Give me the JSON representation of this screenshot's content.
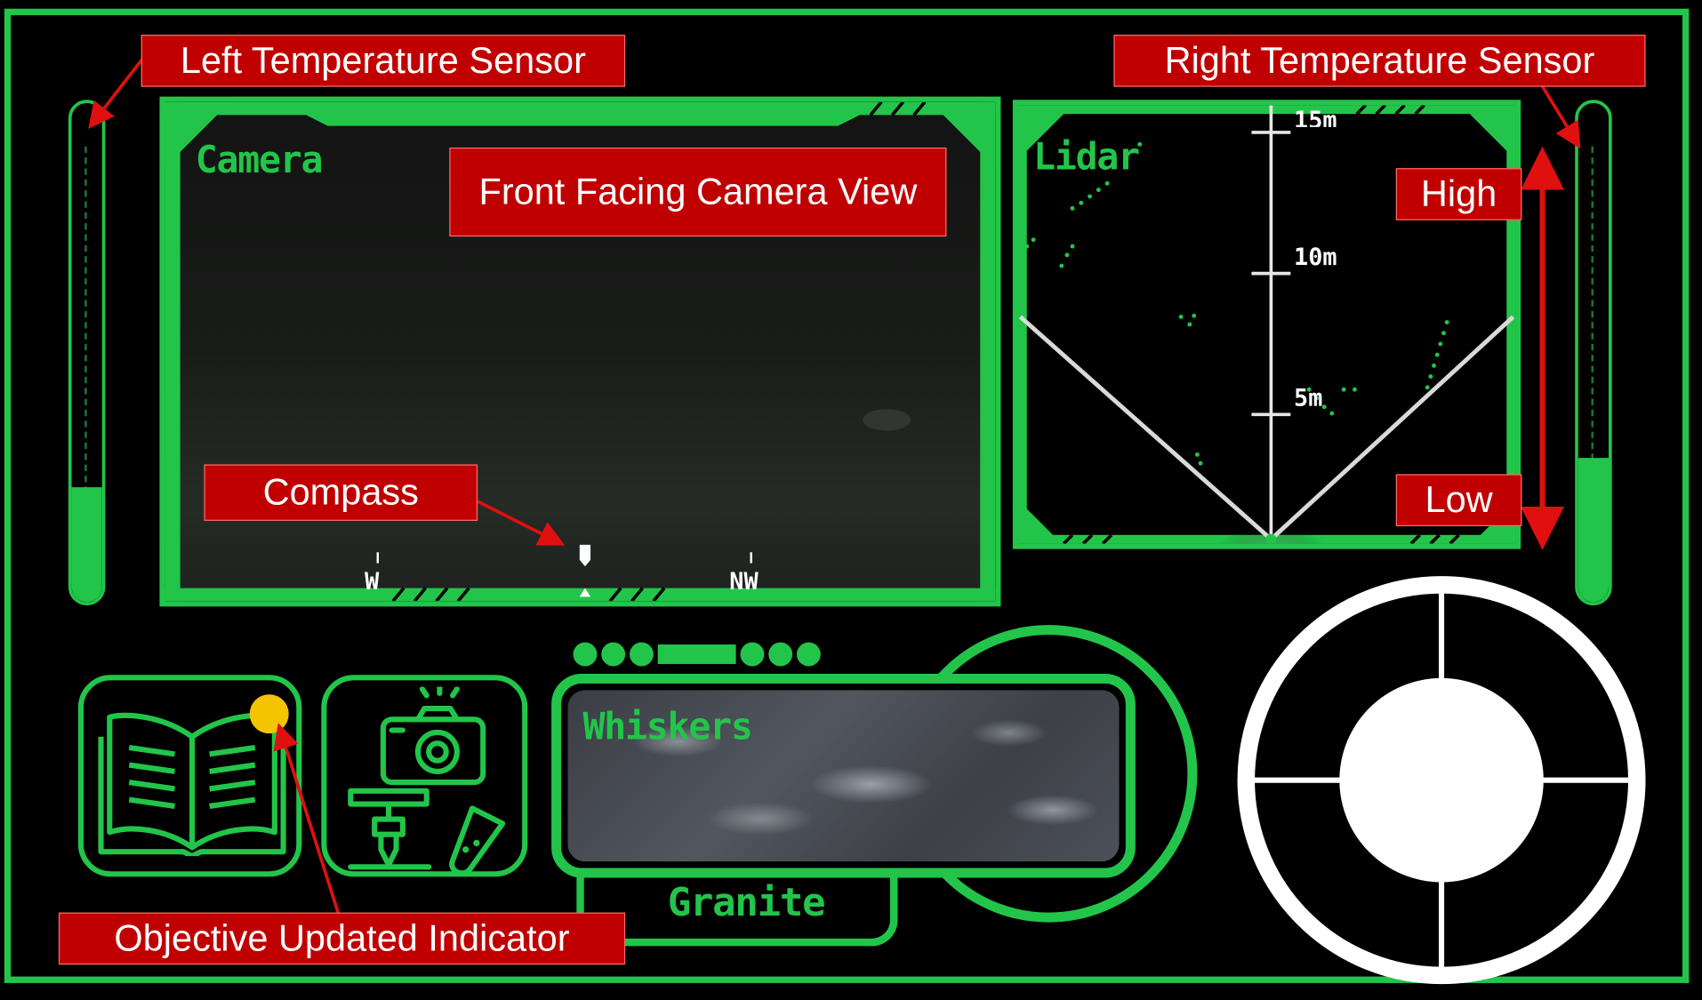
{
  "camera": {
    "title": "Camera",
    "compass": {
      "left": "W",
      "right": "NW"
    }
  },
  "lidar": {
    "title": "Lidar",
    "distances": [
      "15m",
      "10m",
      "5m"
    ]
  },
  "left_temp": {
    "level": 0.23
  },
  "right_temp": {
    "level": 0.29
  },
  "whiskers": {
    "title": "Whiskers",
    "rock": "Granite"
  },
  "objective_indicator": {
    "active": true,
    "color": "#f5c400"
  },
  "callouts": {
    "left_sensor": "Left Temperature Sensor",
    "right_sensor": "Right Temperature Sensor",
    "camera_view": "Front Facing Camera View",
    "compass": "Compass",
    "high": "High",
    "low": "Low",
    "objective": "Objective Updated Indicator"
  },
  "colors": {
    "hud_green": "#22c54a",
    "callout_red": "#c00000",
    "arrow_red": "#e01010"
  },
  "icons": [
    "book-icon",
    "camera-drill-icon",
    "joystick-icon"
  ]
}
